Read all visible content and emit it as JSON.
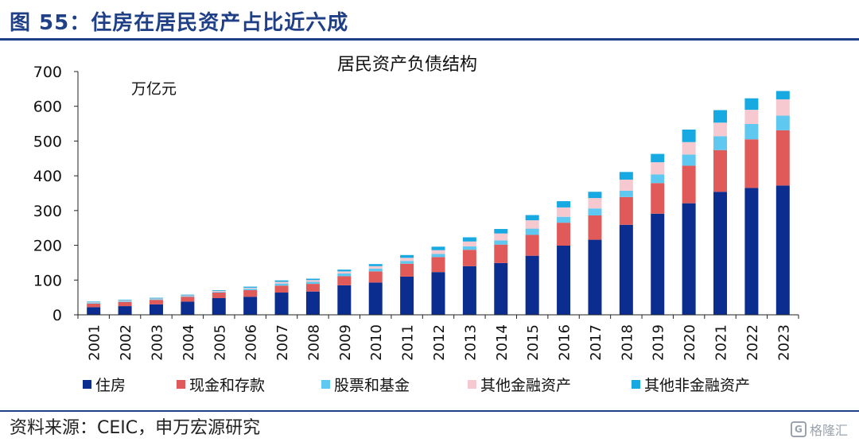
{
  "figure_label": "图 55：住房在居民资产占比近六成",
  "source_note": "资料来源：CEIC，申万宏源研究",
  "watermark_text": "格隆汇",
  "chart_data": {
    "type": "bar",
    "stacked": true,
    "title": "居民资产负债结构",
    "unit_label": "万亿元",
    "xlabel": "",
    "ylabel": "",
    "ylim": [
      0,
      700
    ],
    "yticks": [
      0,
      100,
      200,
      300,
      400,
      500,
      600,
      700
    ],
    "grid": false,
    "legend": "bottom",
    "categories": [
      "2001",
      "2002",
      "2003",
      "2004",
      "2005",
      "2006",
      "2007",
      "2008",
      "2009",
      "2010",
      "2011",
      "2012",
      "2013",
      "2014",
      "2015",
      "2016",
      "2017",
      "2018",
      "2019",
      "2020",
      "2021",
      "2022",
      "2023"
    ],
    "series": [
      {
        "name": "住房",
        "color": "#0b2d8f",
        "values": [
          22,
          25,
          30,
          38,
          48,
          52,
          64,
          67,
          85,
          93,
          110,
          123,
          140,
          149,
          170,
          199,
          216,
          259,
          291,
          321,
          354,
          365,
          372
        ]
      },
      {
        "name": "现金和存款",
        "color": "#e05a5a",
        "values": [
          10,
          12,
          13,
          14,
          16,
          19,
          20,
          22,
          26,
          32,
          37,
          43,
          47,
          53,
          60,
          66,
          70,
          80,
          88,
          108,
          120,
          140,
          159
        ]
      },
      {
        "name": "股票和基金",
        "color": "#5ec8f0",
        "values": [
          2,
          2,
          2,
          2,
          2,
          4,
          6,
          6,
          8,
          8,
          8,
          9,
          10,
          12,
          18,
          17,
          20,
          18,
          25,
          32,
          40,
          44,
          42
        ]
      },
      {
        "name": "其他金融资产",
        "color": "#f5c9cf",
        "values": [
          2,
          2,
          2,
          2,
          3,
          3,
          5,
          5,
          6,
          7,
          9,
          11,
          14,
          20,
          24,
          27,
          30,
          32,
          35,
          36,
          39,
          41,
          47
        ]
      },
      {
        "name": "其他非金融资产",
        "color": "#17a9e1",
        "values": [
          2,
          2,
          2,
          2,
          2,
          3,
          4,
          4,
          5,
          6,
          8,
          10,
          12,
          13,
          15,
          18,
          18,
          22,
          24,
          36,
          36,
          33,
          24
        ]
      }
    ]
  }
}
